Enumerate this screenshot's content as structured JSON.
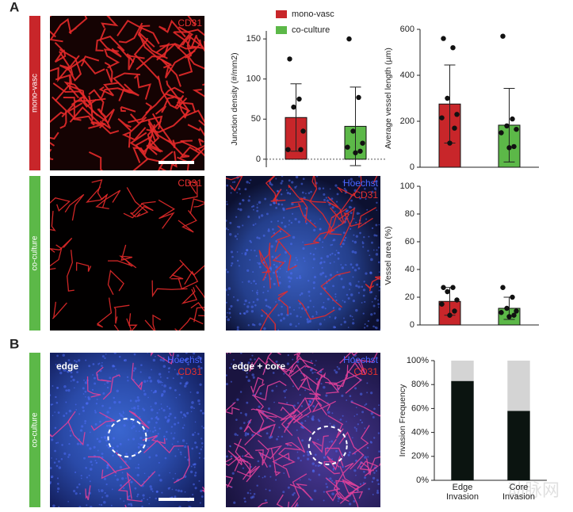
{
  "panels": {
    "a": "A",
    "b": "B",
    "rows": [
      "mono-vasc",
      "co-culture",
      "co-culture"
    ],
    "images": [
      {
        "labels": [
          "CD31"
        ]
      },
      {
        "labels": [
          "CD31"
        ]
      },
      {
        "labels": [
          "Hoechst",
          "CD31"
        ]
      },
      {
        "title": "edge",
        "labels": [
          "Hoechst",
          "CD31"
        ]
      },
      {
        "title": "edge + core",
        "labels": [
          "Hoechst",
          "CD31"
        ]
      }
    ],
    "watermark": "动脉网"
  },
  "chart_data": [
    {
      "type": "bar",
      "y_label": "Junction density (#/mm2)",
      "categories": [
        null
      ],
      "series": [
        {
          "name": "mono-vasc",
          "color": "#c8262a",
          "values": [
            52
          ],
          "errors": [
            42
          ],
          "points": [
            [
              125,
              75,
              65,
              35,
              12,
              12
            ]
          ]
        },
        {
          "name": "co-culture",
          "color": "#5cb848",
          "values": [
            41
          ],
          "errors": [
            49
          ],
          "points": [
            [
              150,
              77,
              35,
              20,
              15,
              10,
              8
            ]
          ]
        }
      ],
      "ylim": [
        -10,
        160
      ],
      "yticks": [
        0,
        50,
        100,
        150
      ]
    },
    {
      "type": "bar",
      "y_label": "Average vessel length (µm)",
      "categories": [
        null
      ],
      "series": [
        {
          "color": "#c8262a",
          "values": [
            275
          ],
          "errors": [
            170
          ],
          "points": [
            [
              560,
              520,
              300,
              230,
              215,
              170,
              105
            ]
          ]
        },
        {
          "color": "#5cb848",
          "values": [
            183
          ],
          "errors": [
            160
          ],
          "points": [
            [
              570,
              210,
              180,
              165,
              150,
              90,
              85
            ]
          ]
        }
      ],
      "ylim": [
        0,
        600
      ],
      "yticks": [
        0,
        200,
        400,
        600
      ]
    },
    {
      "type": "bar",
      "y_label": "Vessel area (%)",
      "categories": [
        null
      ],
      "series": [
        {
          "color": "#c8262a",
          "values": [
            17
          ],
          "errors": [
            10
          ],
          "points": [
            [
              27,
              27,
              24,
              18,
              15,
              10,
              7
            ]
          ]
        },
        {
          "color": "#5cb848",
          "values": [
            12
          ],
          "errors": [
            8
          ],
          "points": [
            [
              27,
              20,
              12,
              10,
              9,
              7,
              6
            ]
          ]
        }
      ],
      "ylim": [
        0,
        100
      ],
      "yticks": [
        0,
        20,
        40,
        60,
        80,
        100
      ]
    },
    {
      "type": "stacked_bar",
      "y_label": "Invasion Frequency",
      "categories": [
        "Edge Invasion",
        "Core Invasion"
      ],
      "series": [
        {
          "color": "#0b1410",
          "values": [
            83,
            58
          ]
        },
        {
          "color": "#d4d4d4",
          "values": [
            17,
            42
          ]
        }
      ],
      "ylim": [
        0,
        100
      ],
      "yticks": [
        {
          "value": 0,
          "label": "0%"
        },
        {
          "value": 20,
          "label": "20%"
        },
        {
          "value": 40,
          "label": "40%"
        },
        {
          "value": 60,
          "label": "60%"
        },
        {
          "value": 80,
          "label": "80%"
        },
        {
          "value": 100,
          "label": "100%"
        }
      ]
    }
  ]
}
